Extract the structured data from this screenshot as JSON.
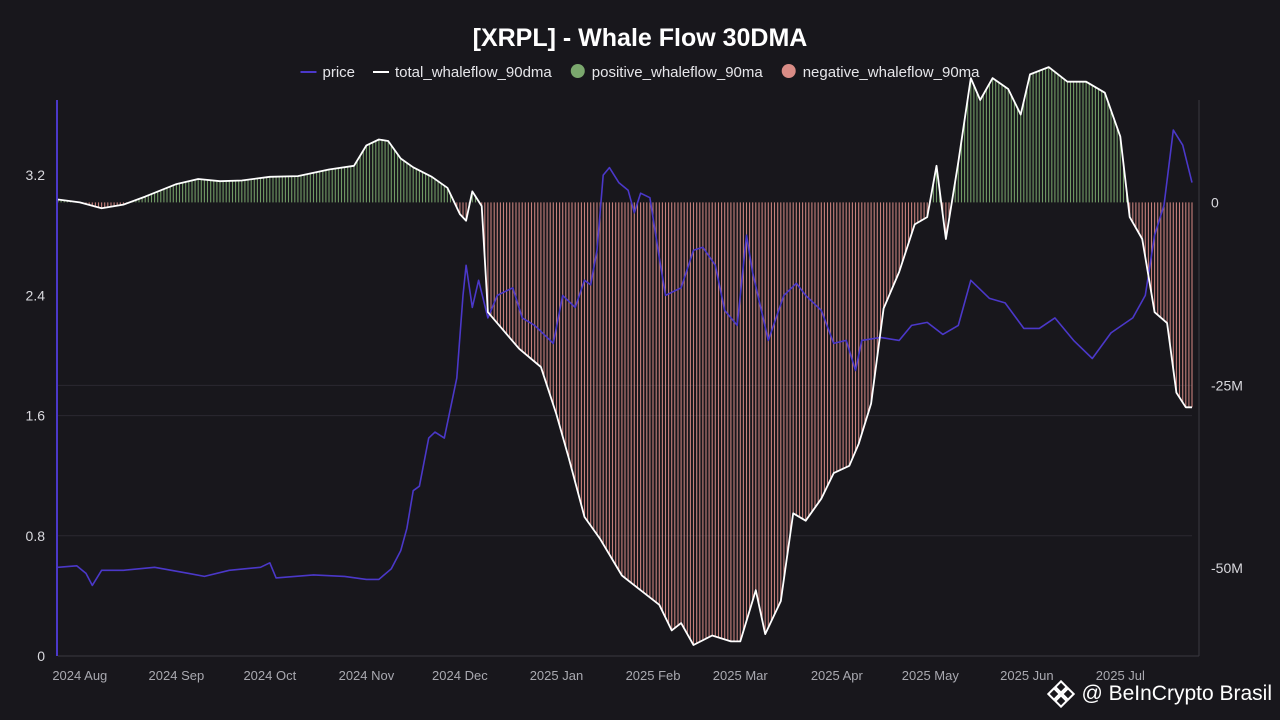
{
  "watermark": {
    "text": "@ BeInCrypto Brasil"
  },
  "colors": {
    "background": "#18171c",
    "price": "#4b38c9",
    "total": "#ffffff",
    "positive": "#7ba86e",
    "negative": "#d98c86",
    "grid": "#2a2930",
    "axis_left": "#4b38c9"
  },
  "chart_data": {
    "type": "line",
    "title": "[XRPL] - Whale Flow 30DMA",
    "legend": [
      {
        "key": "price",
        "label": "price",
        "marker": "line",
        "color": "#4b38c9"
      },
      {
        "key": "total",
        "label": "total_whaleflow_90dma",
        "marker": "line",
        "color": "#ffffff"
      },
      {
        "key": "positive",
        "label": "positive_whaleflow_90ma",
        "marker": "dot",
        "color": "#7ba86e"
      },
      {
        "key": "negative",
        "label": "negative_whaleflow_90ma",
        "marker": "dot",
        "color": "#d98c86"
      }
    ],
    "legend_position": "top-center",
    "x_range": [
      "2024-07-25",
      "2025-07-24"
    ],
    "x_tick_labels": [
      "2024 Aug",
      "2024 Sep",
      "2024 Oct",
      "2024 Nov",
      "2024 Dec",
      "2025 Jan",
      "2025 Feb",
      "2025 Mar",
      "2025 Apr",
      "2025 May",
      "2025 Jun",
      "2025 Jul"
    ],
    "x_tick_dates": [
      "2024-08-01",
      "2024-09-01",
      "2024-10-01",
      "2024-11-01",
      "2024-12-01",
      "2025-01-01",
      "2025-02-01",
      "2025-03-01",
      "2025-04-01",
      "2025-05-01",
      "2025-06-01",
      "2025-07-01"
    ],
    "y_left": {
      "label": "",
      "range": [
        0,
        3.7
      ],
      "ticks": [
        0,
        0.8,
        1.6,
        2.4,
        3.2
      ],
      "tick_labels": [
        "0",
        "0.8",
        "1.6",
        "2.4",
        "3.2"
      ]
    },
    "y_right": {
      "label": "",
      "range": [
        -62000000,
        14000000
      ],
      "ticks": [
        0,
        -25000000,
        -50000000
      ],
      "tick_labels": [
        "0",
        "-25M",
        "-50M"
      ]
    },
    "grid": true,
    "series": [
      {
        "name": "price",
        "axis": "left",
        "points": [
          [
            "2024-07-25",
            0.59
          ],
          [
            "2024-07-31",
            0.6
          ],
          [
            "2024-08-03",
            0.55
          ],
          [
            "2024-08-05",
            0.47
          ],
          [
            "2024-08-08",
            0.57
          ],
          [
            "2024-08-15",
            0.57
          ],
          [
            "2024-08-25",
            0.59
          ],
          [
            "2024-09-05",
            0.55
          ],
          [
            "2024-09-10",
            0.53
          ],
          [
            "2024-09-18",
            0.57
          ],
          [
            "2024-09-28",
            0.59
          ],
          [
            "2024-10-01",
            0.62
          ],
          [
            "2024-10-03",
            0.52
          ],
          [
            "2024-10-15",
            0.54
          ],
          [
            "2024-10-25",
            0.53
          ],
          [
            "2024-11-01",
            0.51
          ],
          [
            "2024-11-05",
            0.51
          ],
          [
            "2024-11-09",
            0.58
          ],
          [
            "2024-11-12",
            0.7
          ],
          [
            "2024-11-14",
            0.85
          ],
          [
            "2024-11-16",
            1.1
          ],
          [
            "2024-11-18",
            1.13
          ],
          [
            "2024-11-21",
            1.45
          ],
          [
            "2024-11-23",
            1.49
          ],
          [
            "2024-11-26",
            1.45
          ],
          [
            "2024-11-30",
            1.85
          ],
          [
            "2024-12-02",
            2.4
          ],
          [
            "2024-12-03",
            2.6
          ],
          [
            "2024-12-05",
            2.32
          ],
          [
            "2024-12-07",
            2.5
          ],
          [
            "2024-12-10",
            2.25
          ],
          [
            "2024-12-13",
            2.4
          ],
          [
            "2024-12-18",
            2.45
          ],
          [
            "2024-12-21",
            2.25
          ],
          [
            "2024-12-25",
            2.2
          ],
          [
            "2024-12-31",
            2.08
          ],
          [
            "2025-01-03",
            2.4
          ],
          [
            "2025-01-07",
            2.32
          ],
          [
            "2025-01-10",
            2.5
          ],
          [
            "2025-01-12",
            2.47
          ],
          [
            "2025-01-14",
            2.7
          ],
          [
            "2025-01-16",
            3.2
          ],
          [
            "2025-01-18",
            3.25
          ],
          [
            "2025-01-21",
            3.15
          ],
          [
            "2025-01-24",
            3.1
          ],
          [
            "2025-01-26",
            2.95
          ],
          [
            "2025-01-28",
            3.08
          ],
          [
            "2025-01-31",
            3.05
          ],
          [
            "2025-02-03",
            2.65
          ],
          [
            "2025-02-05",
            2.4
          ],
          [
            "2025-02-10",
            2.45
          ],
          [
            "2025-02-14",
            2.7
          ],
          [
            "2025-02-17",
            2.72
          ],
          [
            "2025-02-21",
            2.6
          ],
          [
            "2025-02-24",
            2.3
          ],
          [
            "2025-02-28",
            2.2
          ],
          [
            "2025-03-03",
            2.8
          ],
          [
            "2025-03-05",
            2.55
          ],
          [
            "2025-03-10",
            2.1
          ],
          [
            "2025-03-15",
            2.4
          ],
          [
            "2025-03-19",
            2.48
          ],
          [
            "2025-03-22",
            2.4
          ],
          [
            "2025-03-27",
            2.3
          ],
          [
            "2025-03-31",
            2.08
          ],
          [
            "2025-04-04",
            2.1
          ],
          [
            "2025-04-07",
            1.9
          ],
          [
            "2025-04-09",
            2.1
          ],
          [
            "2025-04-15",
            2.12
          ],
          [
            "2025-04-21",
            2.1
          ],
          [
            "2025-04-25",
            2.2
          ],
          [
            "2025-04-30",
            2.22
          ],
          [
            "2025-05-05",
            2.14
          ],
          [
            "2025-05-10",
            2.2
          ],
          [
            "2025-05-14",
            2.5
          ],
          [
            "2025-05-20",
            2.38
          ],
          [
            "2025-05-25",
            2.35
          ],
          [
            "2025-05-31",
            2.18
          ],
          [
            "2025-06-05",
            2.18
          ],
          [
            "2025-06-10",
            2.25
          ],
          [
            "2025-06-16",
            2.1
          ],
          [
            "2025-06-22",
            1.98
          ],
          [
            "2025-06-28",
            2.15
          ],
          [
            "2025-07-05",
            2.25
          ],
          [
            "2025-07-09",
            2.4
          ],
          [
            "2025-07-12",
            2.8
          ],
          [
            "2025-07-15",
            3.0
          ],
          [
            "2025-07-18",
            3.5
          ],
          [
            "2025-07-21",
            3.4
          ],
          [
            "2025-07-24",
            3.15
          ]
        ]
      },
      {
        "name": "total_whaleflow_90dma",
        "axis": "right",
        "points": [
          [
            "2024-07-25",
            400000
          ],
          [
            "2024-08-01",
            0
          ],
          [
            "2024-08-08",
            -800000
          ],
          [
            "2024-08-15",
            -300000
          ],
          [
            "2024-08-22",
            800000
          ],
          [
            "2024-09-01",
            2500000
          ],
          [
            "2024-09-08",
            3200000
          ],
          [
            "2024-09-15",
            2900000
          ],
          [
            "2024-09-22",
            3000000
          ],
          [
            "2024-10-01",
            3500000
          ],
          [
            "2024-10-10",
            3600000
          ],
          [
            "2024-10-20",
            4500000
          ],
          [
            "2024-10-28",
            5000000
          ],
          [
            "2024-11-01",
            7800000
          ],
          [
            "2024-11-05",
            8600000
          ],
          [
            "2024-11-08",
            8400000
          ],
          [
            "2024-11-12",
            6000000
          ],
          [
            "2024-11-16",
            4800000
          ],
          [
            "2024-11-22",
            3500000
          ],
          [
            "2024-11-27",
            2000000
          ],
          [
            "2024-12-01",
            -1600000
          ],
          [
            "2024-12-03",
            -2500000
          ],
          [
            "2024-12-05",
            1500000
          ],
          [
            "2024-12-08",
            -500000
          ],
          [
            "2024-12-10",
            -15000000
          ],
          [
            "2024-12-14",
            -17000000
          ],
          [
            "2024-12-20",
            -20000000
          ],
          [
            "2024-12-27",
            -22500000
          ],
          [
            "2025-01-01",
            -29000000
          ],
          [
            "2025-01-05",
            -35000000
          ],
          [
            "2025-01-10",
            -43000000
          ],
          [
            "2025-01-15",
            -46000000
          ],
          [
            "2025-01-22",
            -51000000
          ],
          [
            "2025-01-28",
            -53000000
          ],
          [
            "2025-02-03",
            -55000000
          ],
          [
            "2025-02-07",
            -58500000
          ],
          [
            "2025-02-10",
            -57500000
          ],
          [
            "2025-02-14",
            -60500000
          ],
          [
            "2025-02-20",
            -59200000
          ],
          [
            "2025-02-26",
            -60000000
          ],
          [
            "2025-03-01",
            -60000000
          ],
          [
            "2025-03-06",
            -53000000
          ],
          [
            "2025-03-09",
            -59000000
          ],
          [
            "2025-03-14",
            -54500000
          ],
          [
            "2025-03-18",
            -42500000
          ],
          [
            "2025-03-22",
            -43500000
          ],
          [
            "2025-03-27",
            -40500000
          ],
          [
            "2025-03-31",
            -37000000
          ],
          [
            "2025-04-05",
            -36000000
          ],
          [
            "2025-04-08",
            -33000000
          ],
          [
            "2025-04-12",
            -27500000
          ],
          [
            "2025-04-16",
            -14500000
          ],
          [
            "2025-04-21",
            -9500000
          ],
          [
            "2025-04-26",
            -3000000
          ],
          [
            "2025-04-30",
            -2000000
          ],
          [
            "2025-05-03",
            5000000
          ],
          [
            "2025-05-06",
            -5000000
          ],
          [
            "2025-05-10",
            5500000
          ],
          [
            "2025-05-14",
            17000000
          ],
          [
            "2025-05-17",
            14000000
          ],
          [
            "2025-05-21",
            17000000
          ],
          [
            "2025-05-26",
            15500000
          ],
          [
            "2025-05-30",
            12000000
          ],
          [
            "2025-06-02",
            17500000
          ],
          [
            "2025-06-08",
            18500000
          ],
          [
            "2025-06-14",
            16500000
          ],
          [
            "2025-06-20",
            16500000
          ],
          [
            "2025-06-26",
            15000000
          ],
          [
            "2025-07-01",
            9000000
          ],
          [
            "2025-07-04",
            -2000000
          ],
          [
            "2025-07-08",
            -5000000
          ],
          [
            "2025-07-12",
            -15000000
          ],
          [
            "2025-07-16",
            -16500000
          ],
          [
            "2025-07-19",
            -26000000
          ],
          [
            "2025-07-22",
            -28000000
          ],
          [
            "2025-07-24",
            -28000000
          ]
        ]
      }
    ],
    "fills": [
      {
        "name": "positive_whaleflow_90ma",
        "source": "total_whaleflow_90dma",
        "condition": "above_zero",
        "color": "#7ba86e"
      },
      {
        "name": "negative_whaleflow_90ma",
        "source": "total_whaleflow_90dma",
        "condition": "below_zero",
        "color": "#d98c86"
      }
    ]
  }
}
